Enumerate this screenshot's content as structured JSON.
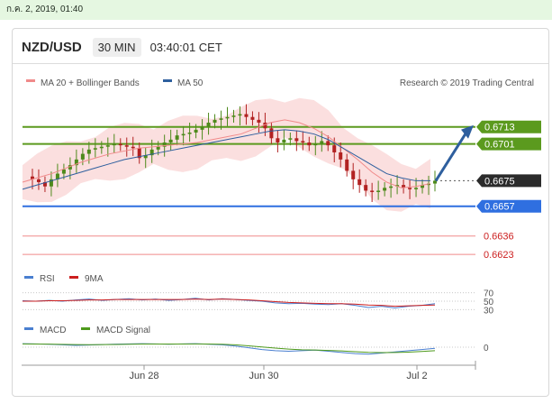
{
  "topbar": {
    "date_text": "ก.ค. 2, 2019, 01:40"
  },
  "header": {
    "symbol": "NZD/USD",
    "timeframe": "30 MIN",
    "time": "03:40:01 CET"
  },
  "legend": {
    "ma20_label": "MA 20 + Bollinger Bands",
    "ma20_color": "#f08a8a",
    "ma50_label": "MA 50",
    "ma50_color": "#2e5f9e",
    "credit": "Research © 2019 Trading Central"
  },
  "colors": {
    "resistance": "#5b9a1e",
    "support": "#2f6fe0",
    "target": "#f08a8a",
    "arrow": "#2e5f9e",
    "up_candle": "#4e8a1c",
    "down_candle": "#b22222"
  },
  "chart_data": [
    {
      "type": "candlestick",
      "pair": "NZD/USD",
      "x_ticks": [
        "Jun 28",
        "Jun 30",
        "Jul 2"
      ],
      "current_price": 0.6675,
      "levels": [
        {
          "value": 0.6713,
          "label": "0.6713",
          "kind": "resistance"
        },
        {
          "value": 0.6701,
          "label": "0.6701",
          "kind": "resistance"
        },
        {
          "value": 0.6675,
          "label": "0.6675",
          "kind": "current"
        },
        {
          "value": 0.6657,
          "label": "0.6657",
          "kind": "support"
        },
        {
          "value": 0.6636,
          "label": "0.6636",
          "kind": "target"
        },
        {
          "value": 0.6623,
          "label": "0.6623",
          "kind": "target"
        }
      ],
      "ylim": [
        0.6618,
        0.6737
      ],
      "series": [
        {
          "name": "MA 20 + Bollinger Bands",
          "values": [
            0.6674,
            0.6677,
            0.668,
            0.6684,
            0.6688,
            0.6691,
            0.6694,
            0.6696,
            0.6698,
            0.6699,
            0.67,
            0.6701,
            0.6702,
            0.6704,
            0.6706,
            0.6708,
            0.6712,
            0.6716,
            0.6718,
            0.6716,
            0.6712,
            0.6706,
            0.6698,
            0.669,
            0.6681,
            0.6674,
            0.667,
            0.6671,
            0.6673
          ]
        },
        {
          "name": "MA 50",
          "values": [
            0.6669,
            0.6672,
            0.6675,
            0.6678,
            0.6681,
            0.6684,
            0.6687,
            0.669,
            0.6692,
            0.6694,
            0.6696,
            0.6698,
            0.67,
            0.6702,
            0.6704,
            0.6706,
            0.6708,
            0.671,
            0.6711,
            0.671,
            0.6708,
            0.6704,
            0.6698,
            0.6692,
            0.6686,
            0.668,
            0.6677,
            0.6675,
            0.6675
          ]
        }
      ],
      "price_path": [
        0.6678,
        0.6676,
        0.6674,
        0.6671,
        0.6676,
        0.668,
        0.6683,
        0.6686,
        0.669,
        0.6694,
        0.6697,
        0.6698,
        0.6699,
        0.67,
        0.6701,
        0.67,
        0.6699,
        0.6698,
        0.6691,
        0.6693,
        0.6697,
        0.6699,
        0.6702,
        0.6704,
        0.6707,
        0.6708,
        0.6709,
        0.6711,
        0.6713,
        0.6716,
        0.6718,
        0.6719,
        0.672,
        0.6721,
        0.6722,
        0.672,
        0.6718,
        0.6716,
        0.6712,
        0.6705,
        0.6702,
        0.6704,
        0.6705,
        0.6703,
        0.6702,
        0.67,
        0.6701,
        0.6703,
        0.67,
        0.6695,
        0.669,
        0.6682,
        0.6676,
        0.6672,
        0.6668,
        0.6667,
        0.6668,
        0.667,
        0.6671,
        0.6672,
        0.667,
        0.6669,
        0.667,
        0.6672,
        0.6673,
        0.6675
      ]
    },
    {
      "type": "line",
      "title": "RSI",
      "legend": [
        "RSI",
        "9MA"
      ],
      "y_ticks": [
        "70",
        "50",
        "30"
      ],
      "ylim": [
        20,
        80
      ],
      "series": [
        {
          "name": "RSI",
          "values": [
            51,
            50,
            52,
            50,
            53,
            55,
            52,
            54,
            56,
            53,
            55,
            52,
            54,
            57,
            53,
            56,
            54,
            52,
            50,
            46,
            44,
            45,
            43,
            42,
            44,
            40,
            35,
            38,
            34,
            38,
            40,
            44
          ]
        },
        {
          "name": "9MA",
          "values": [
            50,
            50,
            51,
            51,
            52,
            53,
            53,
            54,
            54,
            54,
            54,
            54,
            54,
            55,
            54,
            55,
            54,
            53,
            51,
            49,
            47,
            46,
            45,
            44,
            44,
            43,
            41,
            40,
            38,
            39,
            40,
            41
          ]
        }
      ]
    },
    {
      "type": "line",
      "title": "MACD",
      "legend": [
        "MACD",
        "MACD Signal"
      ],
      "y_ticks": [
        "0"
      ],
      "ylim": [
        -1,
        1
      ],
      "series": [
        {
          "name": "MACD",
          "values": [
            0.3,
            0.28,
            0.25,
            0.2,
            0.15,
            0.18,
            0.22,
            0.26,
            0.28,
            0.3,
            0.28,
            0.25,
            0.28,
            0.3,
            0.25,
            0.2,
            0.1,
            -0.05,
            -0.2,
            -0.3,
            -0.35,
            -0.3,
            -0.25,
            -0.35,
            -0.45,
            -0.55,
            -0.6,
            -0.5,
            -0.4,
            -0.3,
            -0.2,
            -0.1
          ]
        },
        {
          "name": "MACD Signal",
          "values": [
            0.28,
            0.27,
            0.26,
            0.24,
            0.22,
            0.21,
            0.22,
            0.23,
            0.25,
            0.27,
            0.27,
            0.27,
            0.27,
            0.28,
            0.27,
            0.25,
            0.2,
            0.12,
            0.02,
            -0.08,
            -0.16,
            -0.22,
            -0.24,
            -0.28,
            -0.32,
            -0.38,
            -0.44,
            -0.46,
            -0.45,
            -0.42,
            -0.37,
            -0.3
          ]
        }
      ]
    }
  ]
}
